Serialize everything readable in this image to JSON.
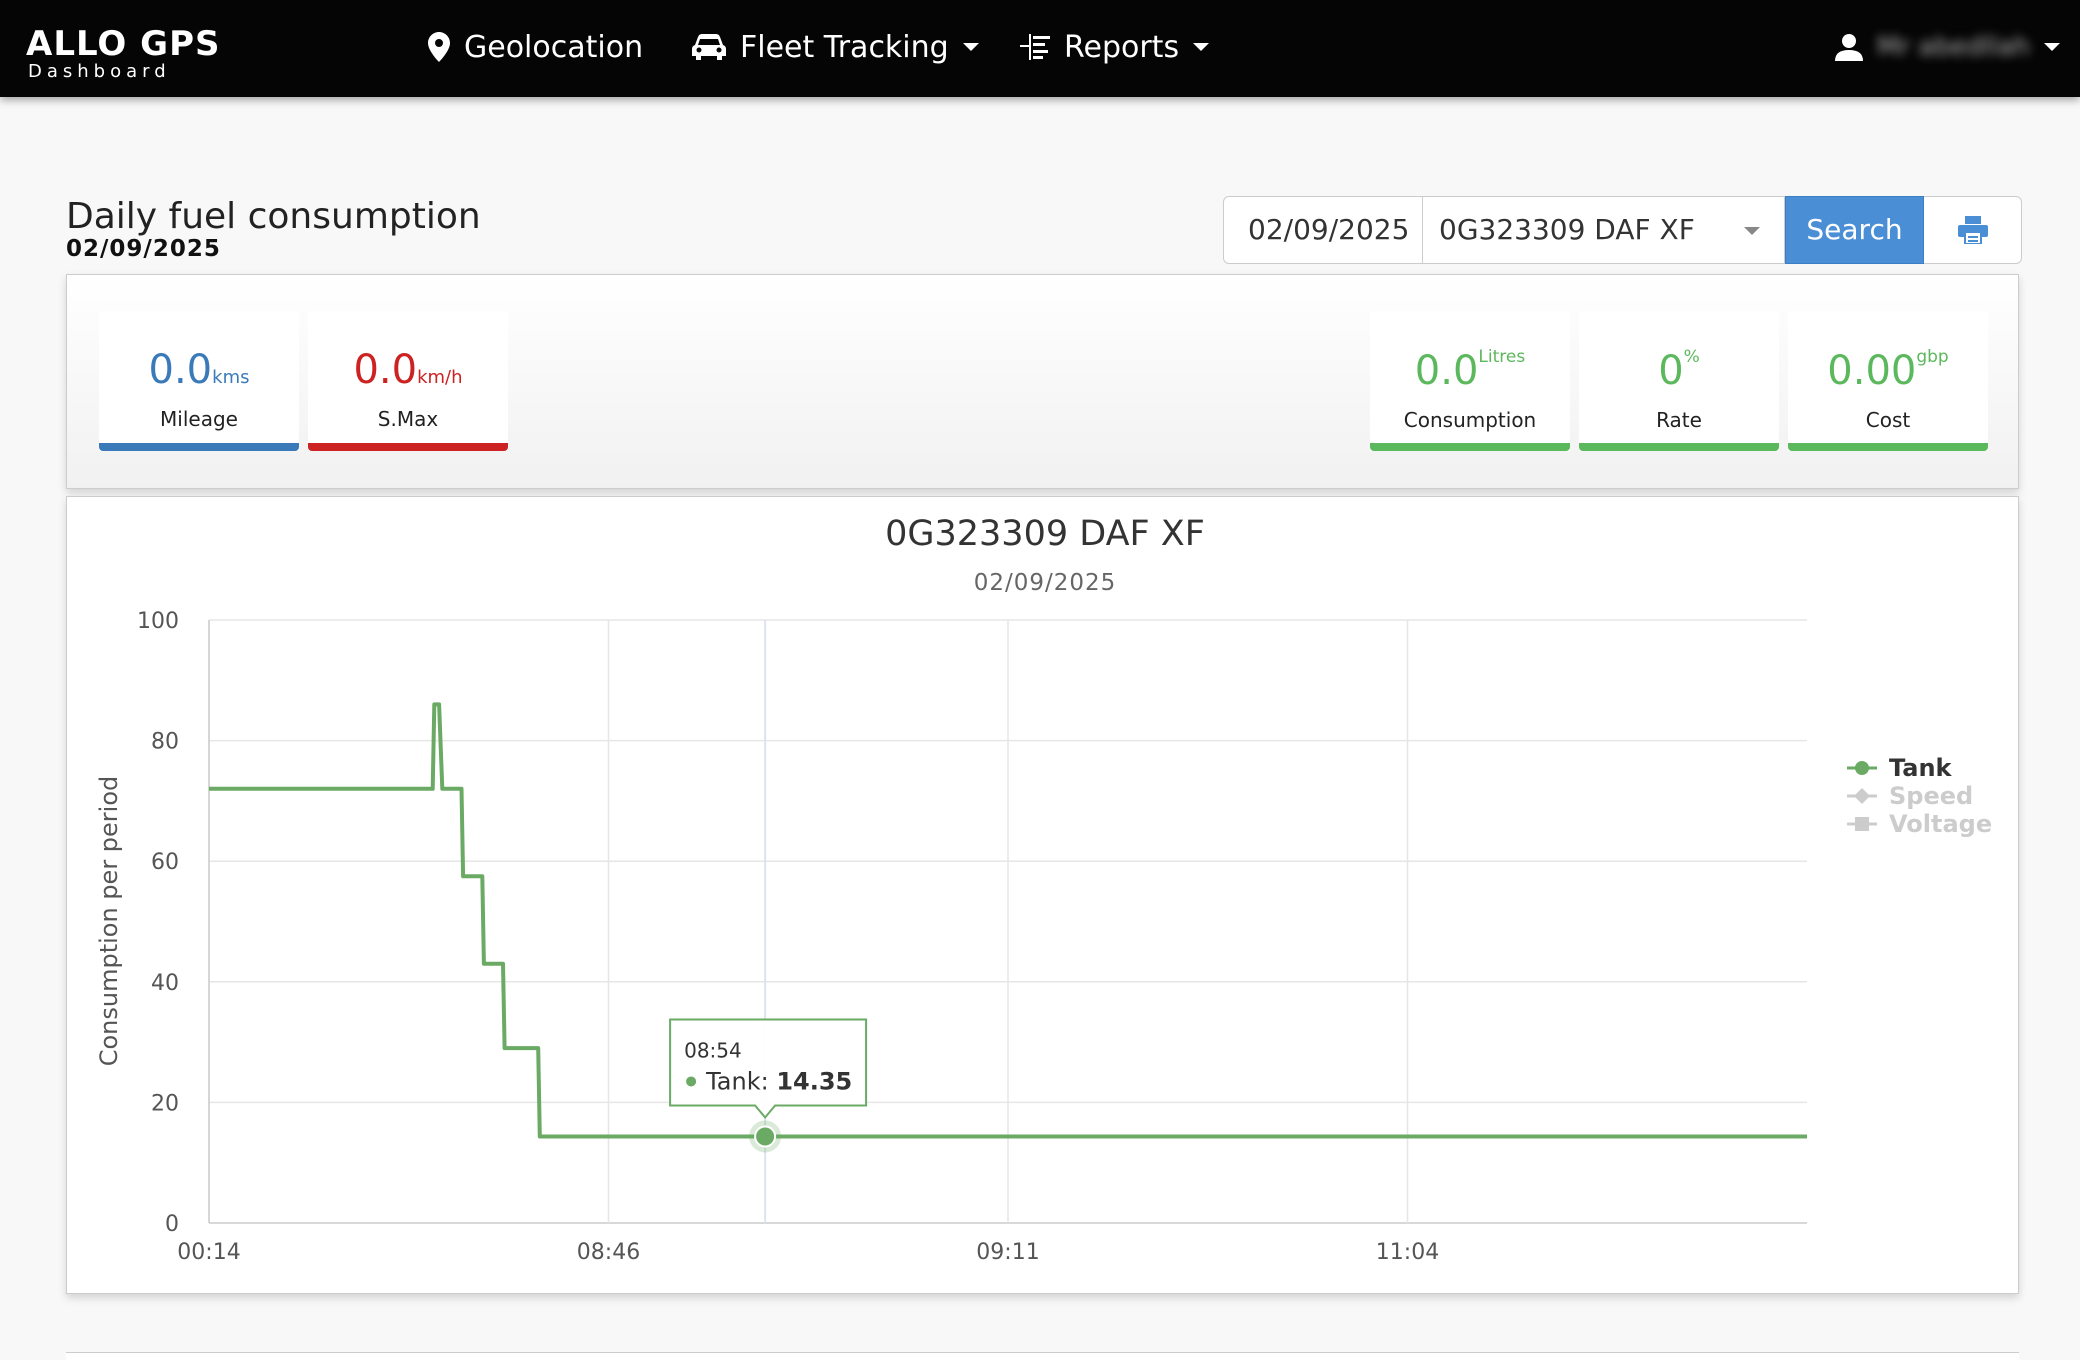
{
  "navbar": {
    "brand_title": "ALLO GPS",
    "brand_sub": "Dashboard",
    "items": [
      {
        "label": "Geolocation",
        "icon": "map-pin-icon"
      },
      {
        "label": "Fleet Tracking",
        "icon": "car-icon"
      },
      {
        "label": "Reports",
        "icon": "reports-icon"
      }
    ],
    "user_name": "Mr abedllah"
  },
  "header": {
    "title": "Daily fuel consumption",
    "date": "02/09/2025"
  },
  "toolbar": {
    "date_value": "02/09/2025",
    "vehicle": "0G323309 DAF XF",
    "search_label": "Search"
  },
  "stats": {
    "mileage": {
      "value": "0.0",
      "unit": "kms",
      "label": "Mileage",
      "color": "#3a7ab8"
    },
    "smax": {
      "value": "0.0",
      "unit": "km/h",
      "label": "S.Max",
      "color": "#cc2222"
    },
    "consumption": {
      "value": "0.0",
      "unit": "Litres",
      "label": "Consumption",
      "color": "#5cb85c"
    },
    "rate": {
      "value": "0",
      "unit": "%",
      "label": "Rate",
      "color": "#5cb85c"
    },
    "cost": {
      "value": "0.00",
      "unit": "gbp",
      "label": "Cost",
      "color": "#5cb85c"
    }
  },
  "chart_data": {
    "type": "line",
    "title": "0G323309 DAF XF",
    "subtitle": "02/09/2025",
    "ylabel": "Consumption per period",
    "ylim": [
      0,
      100
    ],
    "y_ticks": [
      0,
      20,
      40,
      60,
      80,
      100
    ],
    "x_tick_labels": [
      "00:14",
      "08:46",
      "09:11",
      "11:04"
    ],
    "x_range": [
      0,
      1
    ],
    "grid": true,
    "legend_position": "right",
    "series": [
      {
        "name": "Tank",
        "color": "#6aaa64",
        "visible": true,
        "points": [
          [
            0.0,
            72
          ],
          [
            0.14,
            72
          ],
          [
            0.141,
            86
          ],
          [
            0.144,
            86
          ],
          [
            0.146,
            72
          ],
          [
            0.158,
            72
          ],
          [
            0.159,
            57.5
          ],
          [
            0.171,
            57.5
          ],
          [
            0.172,
            43
          ],
          [
            0.184,
            43
          ],
          [
            0.185,
            29
          ],
          [
            0.206,
            29
          ],
          [
            0.207,
            14.35
          ],
          [
            1.0,
            14.35
          ]
        ]
      },
      {
        "name": "Speed",
        "color": "#cccccc",
        "visible": false,
        "points": []
      },
      {
        "name": "Voltage",
        "color": "#cccccc",
        "visible": false,
        "points": []
      }
    ],
    "tooltip": {
      "time": "08:54",
      "series": "Tank",
      "value": "14.35",
      "x": 0.348
    }
  }
}
